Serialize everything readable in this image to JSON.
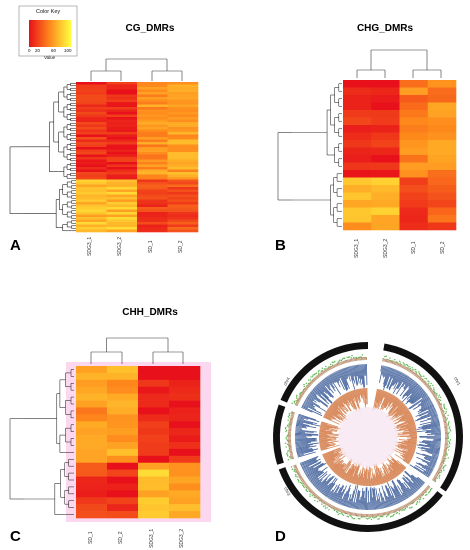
{
  "figure": {
    "panels": [
      {
        "id": "A",
        "letter": "A",
        "title": "CG_DMRs",
        "columns": [
          "SDG3_1",
          "SDG3_2",
          "SD_1",
          "SD_2"
        ],
        "color_key": {
          "title": "Color Key",
          "ticks": [
            "0",
            "20",
            "60",
            "100"
          ],
          "xlabel": "Value"
        }
      },
      {
        "id": "B",
        "letter": "B",
        "title": "CHG_DMRs",
        "columns": [
          "SDG3_1",
          "SDG3_2",
          "SD_1",
          "SD_2"
        ]
      },
      {
        "id": "C",
        "letter": "C",
        "title": "CHH_DMRs",
        "columns": [
          "SD_1",
          "SD_2",
          "SDG3_1",
          "SDG3_2"
        ]
      },
      {
        "id": "D",
        "letter": "D",
        "title": "",
        "chromosomes": [
          "chr1",
          "chr2",
          "chr3",
          "chr4"
        ]
      }
    ]
  },
  "colors": {
    "low": "#e8101a",
    "mid": "#ff8a1c",
    "high": "#ffff40",
    "pink_bg": "#fbd8f0",
    "ring_black": "#111111",
    "blue_track": "#3f5f9a",
    "orange_track": "#d98a5c",
    "green_dots": "#58b84a"
  }
}
